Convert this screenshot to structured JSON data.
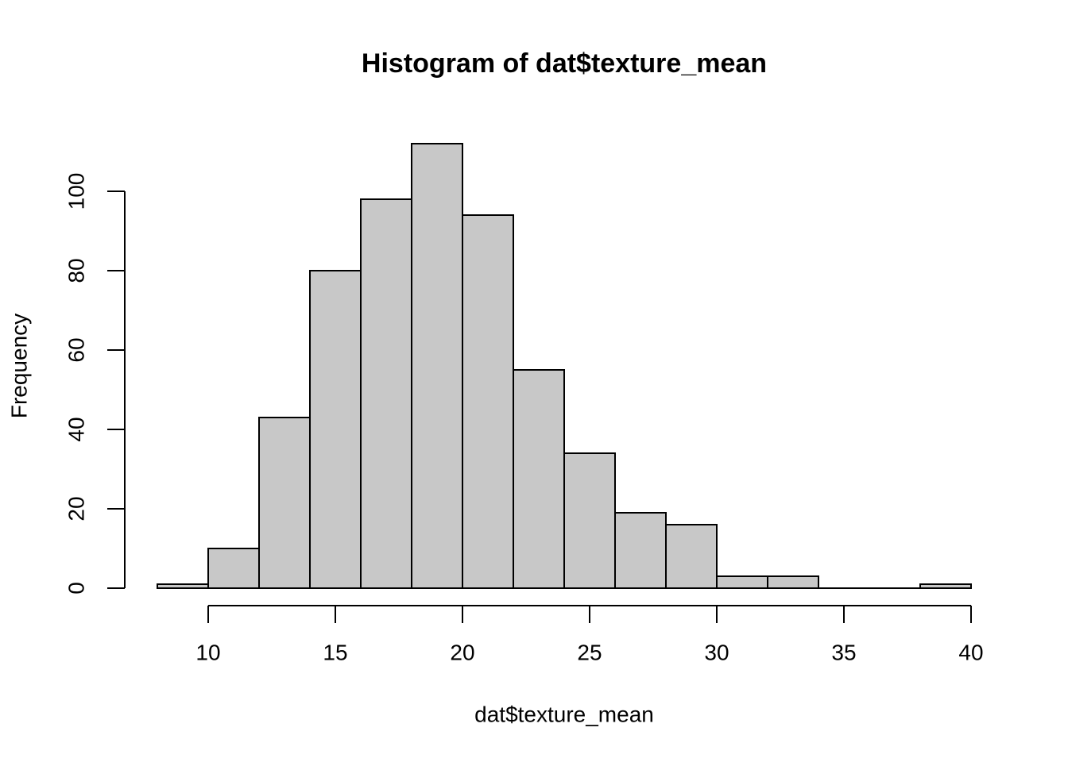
{
  "chart_data": {
    "type": "histogram",
    "title": "Histogram of dat$texture_mean",
    "x_label": "dat$texture_mean",
    "y_label": "Frequency",
    "bins": [
      8,
      10,
      12,
      14,
      16,
      18,
      20,
      22,
      24,
      26,
      28,
      30,
      32,
      34,
      36,
      38,
      40
    ],
    "values": [
      1,
      10,
      43,
      80,
      98,
      112,
      94,
      55,
      34,
      19,
      16,
      3,
      3,
      0,
      0,
      1
    ],
    "color": "#c8c8c8",
    "xlim": [
      8,
      40
    ],
    "xticks": [
      10,
      15,
      20,
      25,
      30,
      35,
      40
    ],
    "ylim": [
      0,
      112
    ],
    "yticks": [
      0,
      20,
      40,
      60,
      80,
      100
    ]
  }
}
